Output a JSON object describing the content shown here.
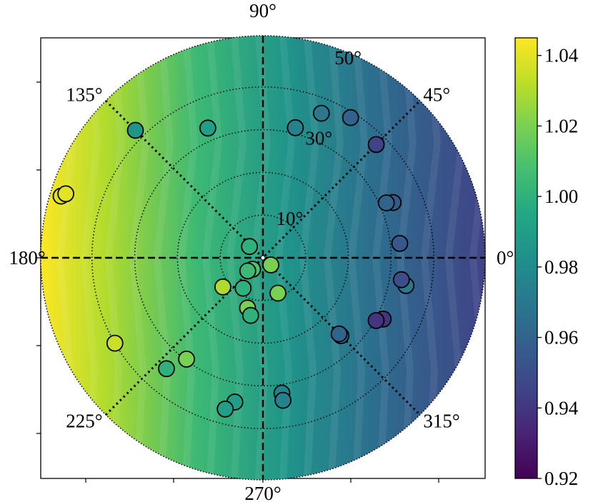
{
  "chart_data": {
    "type": "scatter",
    "projection": "polar",
    "title": "",
    "xlabel": "",
    "ylabel": "",
    "angle_labels": [
      {
        "angle": 0,
        "text": "0°"
      },
      {
        "angle": 45,
        "text": "45°"
      },
      {
        "angle": 90,
        "text": "90°"
      },
      {
        "angle": 135,
        "text": "135°"
      },
      {
        "angle": 180,
        "text": "180°"
      },
      {
        "angle": 225,
        "text": "225°"
      },
      {
        "angle": 270,
        "text": "270°"
      },
      {
        "angle": 315,
        "text": "315°"
      }
    ],
    "radial_rings": [
      10,
      20,
      30,
      40
    ],
    "radial_ring_labels": [
      {
        "r": 10,
        "text": "10°"
      },
      {
        "r": 30,
        "text": "30°"
      },
      {
        "r": 50,
        "text": "50°"
      }
    ],
    "rlim": [
      0,
      52
    ],
    "colorbar": {
      "min": 0.92,
      "max": 1.045,
      "ticks": [
        "0.92",
        "0.94",
        "0.96",
        "0.98",
        "1.00",
        "1.02",
        "1.04"
      ],
      "colormap": "viridis"
    },
    "background_field": "value increases toward 180° (left), decreases toward 0° (right)",
    "points": [
      {
        "azimuth": 68,
        "r": 36.5,
        "value": 0.97
      },
      {
        "azimuth": 58,
        "r": 38.7,
        "value": 0.96
      },
      {
        "azimuth": 76,
        "r": 31.4,
        "value": 0.975
      },
      {
        "azimuth": 45,
        "r": 37.5,
        "value": 0.945
      },
      {
        "azimuth": 113,
        "r": 33.0,
        "value": 0.99
      },
      {
        "azimuth": 135,
        "r": 42.2,
        "value": 0.985
      },
      {
        "azimuth": 163,
        "r": 49.4,
        "value": 1.04
      },
      {
        "azimuth": 162,
        "r": 48.5,
        "value": 1.04
      },
      {
        "azimuth": 140,
        "r": 4.1,
        "value": 1.0
      },
      {
        "azimuth": 228,
        "r": 3.6,
        "value": 1.01
      },
      {
        "azimuth": 221,
        "r": 4.7,
        "value": 1.005
      },
      {
        "azimuth": 318,
        "r": 2.5,
        "value": 1.02
      },
      {
        "azimuth": 237,
        "r": 8.5,
        "value": 1.0
      },
      {
        "azimuth": 253,
        "r": 12.3,
        "value": 1.02
      },
      {
        "azimuth": 258,
        "r": 13.8,
        "value": 1.0
      },
      {
        "azimuth": 216,
        "r": 11.6,
        "value": 1.03
      },
      {
        "azimuth": 293,
        "r": 9.0,
        "value": 1.02
      },
      {
        "azimuth": 23,
        "r": 33.1,
        "value": 0.955
      },
      {
        "azimuth": 24,
        "r": 31.6,
        "value": 0.96
      },
      {
        "azimuth": 6,
        "r": 32.2,
        "value": 0.955
      },
      {
        "azimuth": 349,
        "r": 34.1,
        "value": 0.97
      },
      {
        "azimuth": 351,
        "r": 32.8,
        "value": 0.95
      },
      {
        "azimuth": 333,
        "r": 31.6,
        "value": 0.94
      },
      {
        "azimuth": 331,
        "r": 30.3,
        "value": 0.94
      },
      {
        "azimuth": 315,
        "r": 25.8,
        "value": 0.97
      },
      {
        "azimuth": 315,
        "r": 25.2,
        "value": 0.96
      },
      {
        "azimuth": 278,
        "r": 32.0,
        "value": 0.975
      },
      {
        "azimuth": 278,
        "r": 33.7,
        "value": 0.975
      },
      {
        "azimuth": 259,
        "r": 34.4,
        "value": 0.99
      },
      {
        "azimuth": 256,
        "r": 36.5,
        "value": 0.99
      },
      {
        "azimuth": 233,
        "r": 29.7,
        "value": 1.02
      },
      {
        "azimuth": 229,
        "r": 34.4,
        "value": 1.0
      },
      {
        "azimuth": 210,
        "r": 40.0,
        "value": 1.035
      }
    ]
  }
}
